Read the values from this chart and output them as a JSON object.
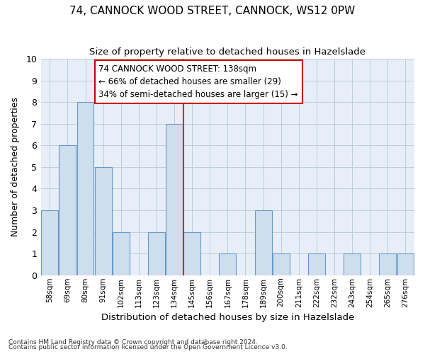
{
  "title": "74, CANNOCK WOOD STREET, CANNOCK, WS12 0PW",
  "subtitle": "Size of property relative to detached houses in Hazelslade",
  "xlabel": "Distribution of detached houses by size in Hazelslade",
  "ylabel": "Number of detached properties",
  "categories": [
    "58sqm",
    "69sqm",
    "80sqm",
    "91sqm",
    "102sqm",
    "113sqm",
    "123sqm",
    "134sqm",
    "145sqm",
    "156sqm",
    "167sqm",
    "178sqm",
    "189sqm",
    "200sqm",
    "211sqm",
    "222sqm",
    "232sqm",
    "243sqm",
    "254sqm",
    "265sqm",
    "276sqm"
  ],
  "values": [
    3,
    6,
    8,
    5,
    2,
    0,
    2,
    7,
    2,
    0,
    1,
    0,
    3,
    1,
    0,
    1,
    0,
    1,
    0,
    1,
    1
  ],
  "bar_color": "#cfdeed",
  "bar_edge_color": "#6699cc",
  "grid_color": "#bbccdd",
  "bg_color": "#e8eef8",
  "red_line_x": 7.5,
  "annotation_line1": "74 CANNOCK WOOD STREET: 138sqm",
  "annotation_line2": "← 66% of detached houses are smaller (29)",
  "annotation_line3": "34% of semi-detached houses are larger (15) →",
  "annotation_box_color": "#ffffff",
  "annotation_box_edge": "#cc0000",
  "ylim": [
    0,
    10
  ],
  "footnote1": "Contains HM Land Registry data © Crown copyright and database right 2024.",
  "footnote2": "Contains public sector information licensed under the Open Government Licence v3.0."
}
